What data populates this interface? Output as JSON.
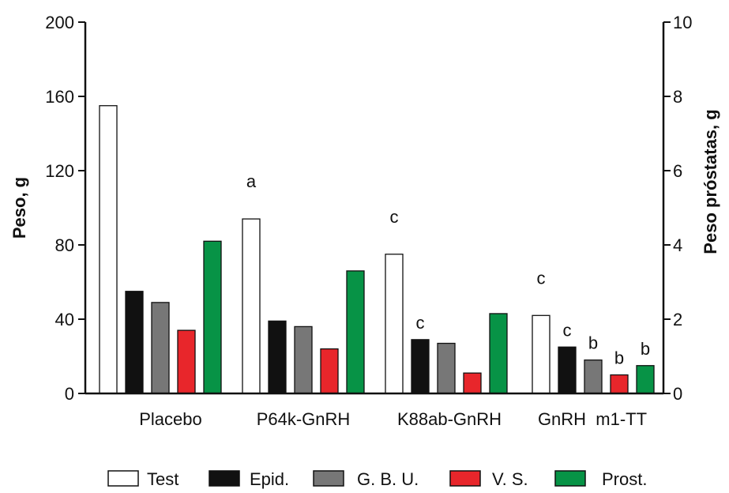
{
  "chart_data": {
    "type": "bar",
    "title": "",
    "categories": [
      "Placebo",
      "P64k-GnRH",
      "K88ab-GnRH",
      "GnRH  m1-TT"
    ],
    "ylabel_left": "Peso, g",
    "ylabel_right": "Peso próstatas, g",
    "ylim_left": [
      0,
      200
    ],
    "ylim_right": [
      0,
      10
    ],
    "left_ticks": [
      "0",
      "40",
      "80",
      "120",
      "160",
      "200"
    ],
    "right_ticks": [
      "0",
      "2",
      "4",
      "6",
      "8",
      "10"
    ],
    "grid": false,
    "legend_position": "bottom",
    "series": [
      {
        "name": "Test",
        "axis": "left",
        "color": "#ffffff",
        "values": [
          155,
          94,
          75,
          42
        ],
        "labels": [
          "",
          "a",
          "c",
          "c"
        ]
      },
      {
        "name": "Epid.",
        "axis": "left",
        "color": "#111111",
        "values": [
          55,
          39,
          29,
          25
        ],
        "labels": [
          "",
          "",
          "c",
          "c"
        ]
      },
      {
        "name": "G. B. U.",
        "axis": "left",
        "color": "#777777",
        "values": [
          49,
          36,
          27,
          18
        ],
        "labels": [
          "",
          "",
          "",
          "b"
        ]
      },
      {
        "name": "V. S.",
        "axis": "left",
        "color": "#e8262b",
        "values": [
          34,
          24,
          11,
          10
        ],
        "labels": [
          "",
          "",
          "",
          "b"
        ]
      },
      {
        "name": "Prost.",
        "axis": "right",
        "color": "#079346",
        "values": [
          4.1,
          3.3,
          2.15,
          0.75
        ],
        "labels": [
          "",
          "",
          "",
          "b"
        ]
      }
    ]
  }
}
